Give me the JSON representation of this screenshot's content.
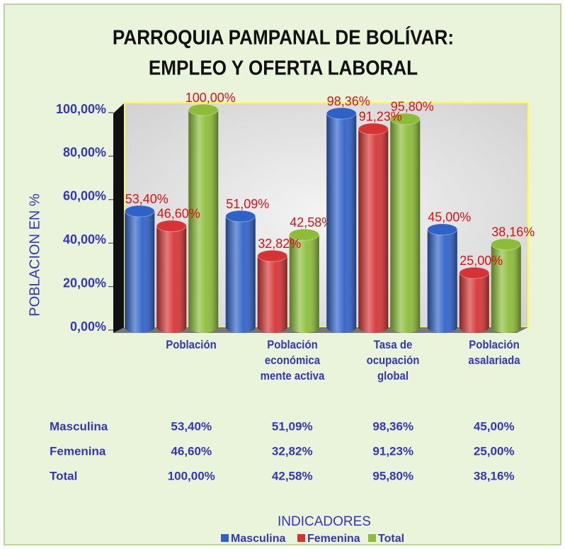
{
  "chart_data": {
    "type": "bar",
    "title": [
      "PARROQUIA PAMPANAL DE BOLÍVAR:",
      "EMPLEO Y OFERTA LABORAL"
    ],
    "ylabel": "POBLACION EN %",
    "xlabel": "INDICADORES",
    "categories": [
      "Población",
      "Población económica mente activa",
      "Tasa de ocupación global",
      "Población asalariada"
    ],
    "series": [
      {
        "name": "Masculina",
        "color": "#2f62c8",
        "values": [
          53.4,
          51.09,
          98.36,
          45
        ],
        "value_labels": [
          "53,40%",
          "51,09%",
          "98,36%",
          "45,00%"
        ]
      },
      {
        "name": "Femenina",
        "color": "#d63434",
        "values": [
          46.6,
          32.82,
          91.23,
          25
        ],
        "value_labels": [
          "46,60%",
          "32,82%",
          "91,23%",
          "25,00%"
        ]
      },
      {
        "name": "Total",
        "color": "#8cbc38",
        "values": [
          100,
          42.58,
          95.8,
          38.16
        ],
        "value_labels": [
          "100,00%",
          "42,58%",
          "95,80%",
          "38,16%"
        ]
      }
    ],
    "ylim": [
      0,
      100
    ],
    "yticks": [
      {
        "value": 0,
        "label": "0,00%"
      },
      {
        "value": 20,
        "label": "20,00%"
      },
      {
        "value": 40,
        "label": "40,00%"
      },
      {
        "value": 60,
        "label": "60,00%"
      },
      {
        "value": 80,
        "label": "80,00%"
      },
      {
        "value": 100,
        "label": "100,00%"
      }
    ]
  }
}
